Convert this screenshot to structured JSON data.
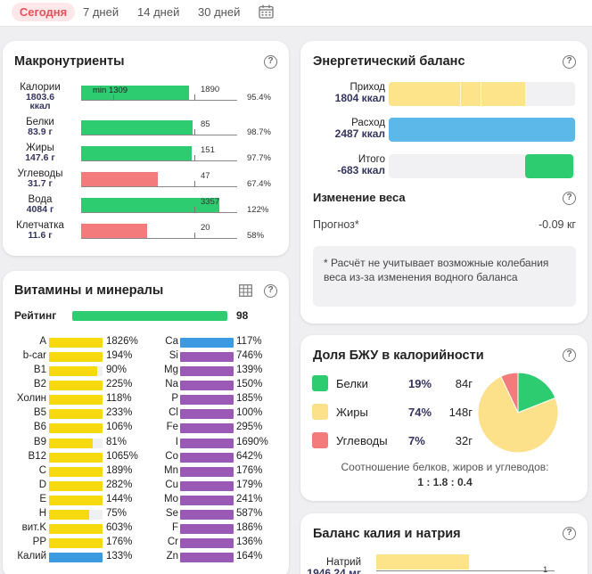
{
  "tabs": {
    "today": "Сегодня",
    "week": "7 дней",
    "twoweeks": "14 дней",
    "month": "30 дней"
  },
  "help_glyph": "?",
  "macros": {
    "title": "Макронутриенты",
    "min_label": "min 1309",
    "rows": [
      {
        "name": "Калории",
        "value": "1803.6",
        "unit": "ккал",
        "target": "1890",
        "pct": "95.4%",
        "fill": 95.4,
        "color": "#2ecc71"
      },
      {
        "name": "Белки",
        "value": "83.9 г",
        "unit": "",
        "target": "85",
        "pct": "98.7%",
        "fill": 98.7,
        "color": "#2ecc71"
      },
      {
        "name": "Жиры",
        "value": "147.6 г",
        "unit": "",
        "target": "151",
        "pct": "97.7%",
        "fill": 97.7,
        "color": "#2ecc71"
      },
      {
        "name": "Углеводы",
        "value": "31.7 г",
        "unit": "",
        "target": "47",
        "pct": "67.4%",
        "fill": 67.4,
        "color": "#f47b7b"
      },
      {
        "name": "Вода",
        "value": "4084 г",
        "unit": "",
        "target": "3357",
        "pct": "122%",
        "fill": 122,
        "color": "#2ecc71"
      },
      {
        "name": "Клетчатка",
        "value": "11.6 г",
        "unit": "",
        "target": "20",
        "pct": "58%",
        "fill": 58,
        "color": "#f47b7b"
      }
    ]
  },
  "vitamins": {
    "title": "Витамины и минералы",
    "rating_label": "Рейтинг",
    "rating_value": "98",
    "left": [
      {
        "name": "A",
        "pct": "1826%",
        "fill": 1826
      },
      {
        "name": "b-car",
        "pct": "194%",
        "fill": 194
      },
      {
        "name": "B1",
        "pct": "90%",
        "fill": 90
      },
      {
        "name": "B2",
        "pct": "225%",
        "fill": 225
      },
      {
        "name": "Холин",
        "pct": "118%",
        "fill": 118
      },
      {
        "name": "B5",
        "pct": "233%",
        "fill": 233
      },
      {
        "name": "B6",
        "pct": "106%",
        "fill": 106
      },
      {
        "name": "B9",
        "pct": "81%",
        "fill": 81
      },
      {
        "name": "B12",
        "pct": "1065%",
        "fill": 1065
      },
      {
        "name": "C",
        "pct": "189%",
        "fill": 189
      },
      {
        "name": "D",
        "pct": "282%",
        "fill": 282
      },
      {
        "name": "E",
        "pct": "144%",
        "fill": 144
      },
      {
        "name": "H",
        "pct": "75%",
        "fill": 75
      },
      {
        "name": "вит.K",
        "pct": "603%",
        "fill": 603
      },
      {
        "name": "PP",
        "pct": "176%",
        "fill": 176
      },
      {
        "name": "Калий",
        "pct": "133%",
        "fill": 133
      }
    ],
    "right": [
      {
        "name": "Ca",
        "pct": "117%",
        "fill": 117
      },
      {
        "name": "Si",
        "pct": "746%",
        "fill": 746
      },
      {
        "name": "Mg",
        "pct": "139%",
        "fill": 139
      },
      {
        "name": "Na",
        "pct": "150%",
        "fill": 150
      },
      {
        "name": "P",
        "pct": "185%",
        "fill": 185
      },
      {
        "name": "Cl",
        "pct": "100%",
        "fill": 100
      },
      {
        "name": "Fe",
        "pct": "295%",
        "fill": 295
      },
      {
        "name": "I",
        "pct": "1690%",
        "fill": 1690
      },
      {
        "name": "Co",
        "pct": "642%",
        "fill": 642
      },
      {
        "name": "Mn",
        "pct": "176%",
        "fill": 176
      },
      {
        "name": "Cu",
        "pct": "179%",
        "fill": 179
      },
      {
        "name": "Mo",
        "pct": "241%",
        "fill": 241
      },
      {
        "name": "Se",
        "pct": "587%",
        "fill": 587
      },
      {
        "name": "F",
        "pct": "186%",
        "fill": 186
      },
      {
        "name": "Cr",
        "pct": "136%",
        "fill": 136
      },
      {
        "name": "Zn",
        "pct": "164%",
        "fill": 164
      }
    ]
  },
  "energy": {
    "title": "Энергетический баланс",
    "income_label": "Приход",
    "income_value": "1804 ккал",
    "expense_label": "Расход",
    "expense_value": "2487 ккал",
    "total_label": "Итого",
    "total_value": "-683 ккал",
    "income_fill": 0.73,
    "total_fill": 0.27,
    "weight_title": "Изменение веса",
    "forecast_label": "Прогноз*",
    "forecast_value": "-0.09 кг",
    "note": "* Расчёт не учитывает возможные колебания веса из-за изменения водного баланса"
  },
  "bju": {
    "title": "Доля БЖУ в калорийности",
    "rows": [
      {
        "name": "Белки",
        "pct": "19%",
        "grams": "84г",
        "value": 19,
        "color": "#2ecc71"
      },
      {
        "name": "Жиры",
        "pct": "74%",
        "grams": "148г",
        "value": 74,
        "color": "#fde08a"
      },
      {
        "name": "Углеводы",
        "pct": "7%",
        "grams": "32г",
        "value": 7,
        "color": "#f47b7b"
      }
    ],
    "ratio_caption": "Соотношение белков, жиров и углеводов:",
    "ratio_value": "1 : 1.8 : 0.4"
  },
  "kna": {
    "title": "Баланс калия и натрия",
    "sodium_label": "Натрий",
    "sodium_value": "1946.24 мг",
    "scale_end": "1"
  },
  "colors": {
    "green": "#2ecc71",
    "red": "#f47b7b",
    "yellow": "#f6d90f",
    "blue": "#3b9ae0",
    "purple": "#9b59b6",
    "expense": "#5bb8e8",
    "income": "#fde38a"
  }
}
